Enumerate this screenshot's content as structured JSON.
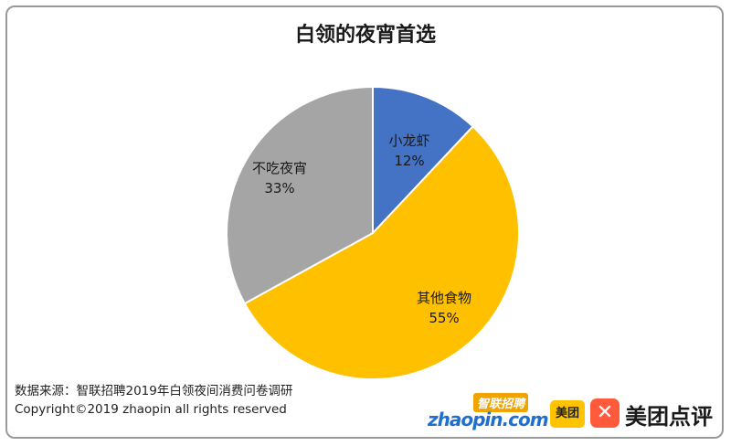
{
  "chart_data": {
    "type": "pie",
    "title": "白领的夜宵首选",
    "slices": [
      {
        "label": "小龙虾",
        "value": 12,
        "value_label": "12%",
        "color": "#4472c4"
      },
      {
        "label": "其他食物",
        "value": 55,
        "value_label": "55%",
        "color": "#ffc000"
      },
      {
        "label": "不吃夜宵",
        "value": 33,
        "value_label": "33%",
        "color": "#a5a5a5"
      }
    ],
    "start": "12 o'clock, clockwise",
    "legend": "none (labels on slices)"
  },
  "footer": {
    "source": "数据来源：智联招聘2019年白领夜间消费问卷调研",
    "copyright": "Copyright©2019 zhaopin all rights reserved"
  },
  "logos": {
    "zhaopin_cn": "智联招聘",
    "zhaopin_en": "zhaopin.com",
    "meituan": "美团",
    "dianping": "美团点评"
  }
}
